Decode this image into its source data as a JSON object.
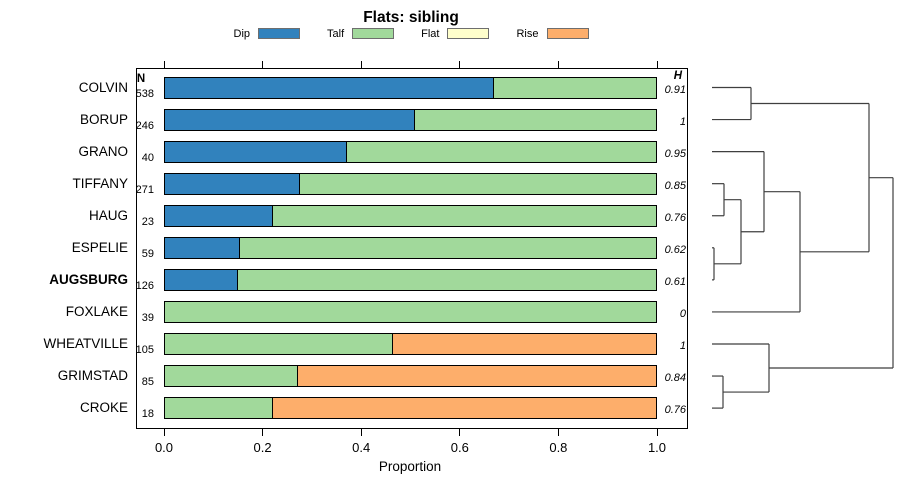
{
  "title": "Flats: sibling",
  "legend": {
    "items": [
      {
        "label": "Dip",
        "color": "#3182BD"
      },
      {
        "label": "Talf",
        "color": "#A1D99B"
      },
      {
        "label": "Flat",
        "color": "#FFFFCC"
      },
      {
        "label": "Rise",
        "color": "#FDAE6B"
      }
    ]
  },
  "chart_data": {
    "type": "bar",
    "orientation": "horizontal",
    "stacked": true,
    "title": "Flats: sibling",
    "xlabel": "Proportion",
    "xlim": [
      0,
      1
    ],
    "xticks": [
      "0.0",
      "0.2",
      "0.4",
      "0.6",
      "0.8",
      "1.0"
    ],
    "n_header": "N",
    "h_header": "H",
    "categories": [
      "Dip",
      "Talf",
      "Flat",
      "Rise"
    ],
    "rows": [
      {
        "name": "COLVIN",
        "n": "538",
        "h": "0.91",
        "bold": false,
        "segments": [
          {
            "category": "Dip",
            "value": 0.67
          },
          {
            "category": "Talf",
            "value": 0.33
          }
        ]
      },
      {
        "name": "BORUP",
        "n": "246",
        "h": "1",
        "bold": false,
        "segments": [
          {
            "category": "Dip",
            "value": 0.51
          },
          {
            "category": "Talf",
            "value": 0.49
          }
        ]
      },
      {
        "name": "GRANO",
        "n": "40",
        "h": "0.95",
        "bold": false,
        "segments": [
          {
            "category": "Dip",
            "value": 0.37
          },
          {
            "category": "Talf",
            "value": 0.63
          }
        ]
      },
      {
        "name": "TIFFANY",
        "n": "271",
        "h": "0.85",
        "bold": false,
        "segments": [
          {
            "category": "Dip",
            "value": 0.275
          },
          {
            "category": "Talf",
            "value": 0.725
          }
        ]
      },
      {
        "name": "HAUG",
        "n": "23",
        "h": "0.76",
        "bold": false,
        "segments": [
          {
            "category": "Dip",
            "value": 0.22
          },
          {
            "category": "Talf",
            "value": 0.78
          }
        ]
      },
      {
        "name": "ESPELIE",
        "n": "59",
        "h": "0.62",
        "bold": false,
        "segments": [
          {
            "category": "Dip",
            "value": 0.152
          },
          {
            "category": "Talf",
            "value": 0.848
          }
        ]
      },
      {
        "name": "AUGSBURG",
        "n": "126",
        "h": "0.61",
        "bold": true,
        "segments": [
          {
            "category": "Dip",
            "value": 0.149
          },
          {
            "category": "Talf",
            "value": 0.851
          }
        ]
      },
      {
        "name": "FOXLAKE",
        "n": "39",
        "h": "0",
        "bold": false,
        "segments": [
          {
            "category": "Talf",
            "value": 1.0
          }
        ]
      },
      {
        "name": "WHEATVILLE",
        "n": "105",
        "h": "1",
        "bold": false,
        "segments": [
          {
            "category": "Talf",
            "value": 0.465
          },
          {
            "category": "Rise",
            "value": 0.535
          }
        ]
      },
      {
        "name": "GRIMSTAD",
        "n": "85",
        "h": "0.84",
        "bold": false,
        "segments": [
          {
            "category": "Talf",
            "value": 0.27
          },
          {
            "category": "Rise",
            "value": 0.73
          }
        ]
      },
      {
        "name": "CROKE",
        "n": "18",
        "h": "0.76",
        "bold": false,
        "segments": [
          {
            "category": "Talf",
            "value": 0.22
          },
          {
            "category": "Rise",
            "value": 0.78
          }
        ]
      }
    ],
    "dendrogram": {
      "leaf_x": 22,
      "merges": [
        {
          "id": "m_cb",
          "children": [
            "COLVIN",
            "BORUP"
          ],
          "x": 61
        },
        {
          "id": "m_th",
          "children": [
            "TIFFANY",
            "HAUG"
          ],
          "x": 34
        },
        {
          "id": "m_ea",
          "children": [
            "ESPELIE",
            "AUGSBURG"
          ],
          "x": 24
        },
        {
          "id": "m_th_ea",
          "children": [
            "m_th",
            "m_ea"
          ],
          "x": 51
        },
        {
          "id": "m_g",
          "children": [
            "GRANO",
            "m_th_ea"
          ],
          "x": 74
        },
        {
          "id": "m_gf",
          "children": [
            "m_g",
            "FOXLAKE"
          ],
          "x": 110
        },
        {
          "id": "m_top",
          "children": [
            "m_cb",
            "m_gf"
          ],
          "x": 179
        },
        {
          "id": "m_gc",
          "children": [
            "GRIMSTAD",
            "CROKE"
          ],
          "x": 33
        },
        {
          "id": "m_w",
          "children": [
            "WHEATVILLE",
            "m_gc"
          ],
          "x": 79
        },
        {
          "id": "root",
          "children": [
            "m_top",
            "m_w"
          ],
          "x": 203
        }
      ]
    }
  }
}
